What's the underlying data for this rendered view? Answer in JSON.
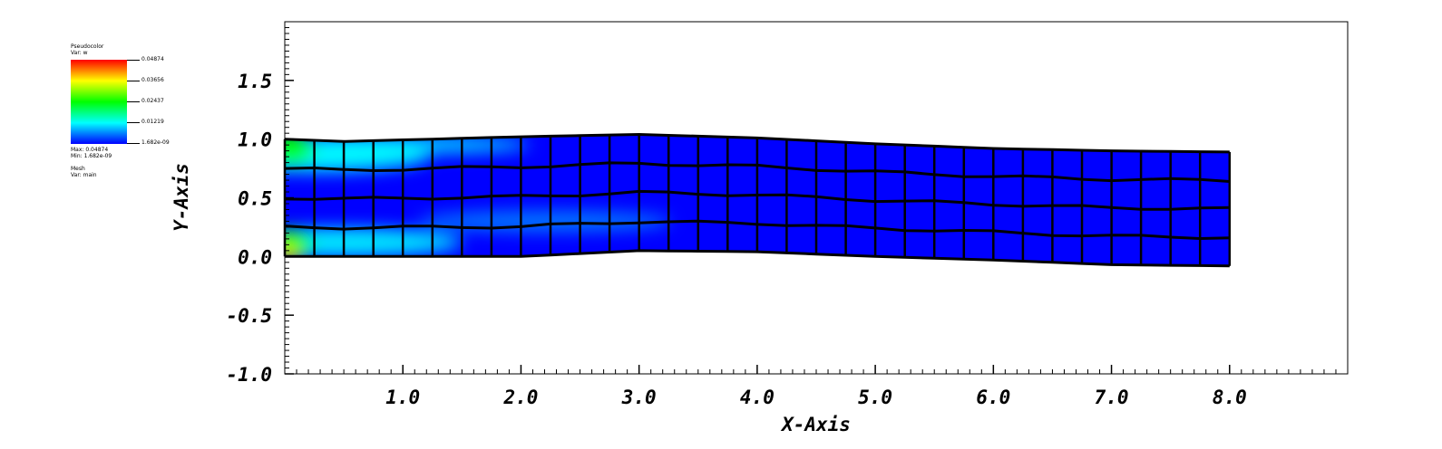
{
  "legend": {
    "pseudocolor_title": "Pseudocolor",
    "pseudocolor_var": "Var: w",
    "tick_labels": [
      "0.04874",
      "0.03656",
      "0.02437",
      "0.01219",
      "1.682e-09"
    ],
    "max_label": "Max: 0.04874",
    "min_label": "Min: 1.682e-09",
    "mesh_title": "Mesh",
    "mesh_var": "Var: main"
  },
  "chart_data": {
    "type": "heatmap",
    "xlabel": "X-Axis",
    "ylabel": "Y-Axis",
    "xlim": [
      0.0,
      9.0
    ],
    "ylim": [
      -1.0,
      2.0
    ],
    "x_tick_labels": [
      "1.0",
      "2.0",
      "3.0",
      "4.0",
      "5.0",
      "6.0",
      "7.0",
      "8.0"
    ],
    "x_tick_values": [
      1.0,
      2.0,
      3.0,
      4.0,
      5.0,
      6.0,
      7.0,
      8.0
    ],
    "y_tick_labels": [
      "-1.0",
      "-0.5",
      "0.0",
      "0.5",
      "1.0",
      "1.5"
    ],
    "y_tick_values": [
      -1.0,
      -0.5,
      0.0,
      0.5,
      1.0,
      1.5
    ],
    "variable": "w",
    "value_range": [
      1.682e-09,
      0.04874
    ],
    "mesh": {
      "columns": 32,
      "rows": 4,
      "x_start": 0.0,
      "x_end": 8.0,
      "bottom_boundary": [
        [
          0.0,
          0.0
        ],
        [
          2.0,
          0.0
        ],
        [
          3.0,
          0.05
        ],
        [
          4.0,
          0.04
        ],
        [
          5.0,
          0.0
        ],
        [
          6.0,
          -0.03
        ],
        [
          7.0,
          -0.07
        ],
        [
          8.0,
          -0.08
        ]
      ],
      "top_boundary": [
        [
          0.0,
          1.0
        ],
        [
          0.5,
          0.98
        ],
        [
          2.0,
          1.02
        ],
        [
          3.0,
          1.04
        ],
        [
          4.0,
          1.01
        ],
        [
          5.0,
          0.96
        ],
        [
          6.0,
          0.92
        ],
        [
          7.0,
          0.9
        ],
        [
          8.0,
          0.89
        ]
      ]
    },
    "colormap": [
      "#0000ff",
      "#00ffff",
      "#00ff00",
      "#ffff00",
      "#ff0000"
    ],
    "grid": false
  }
}
